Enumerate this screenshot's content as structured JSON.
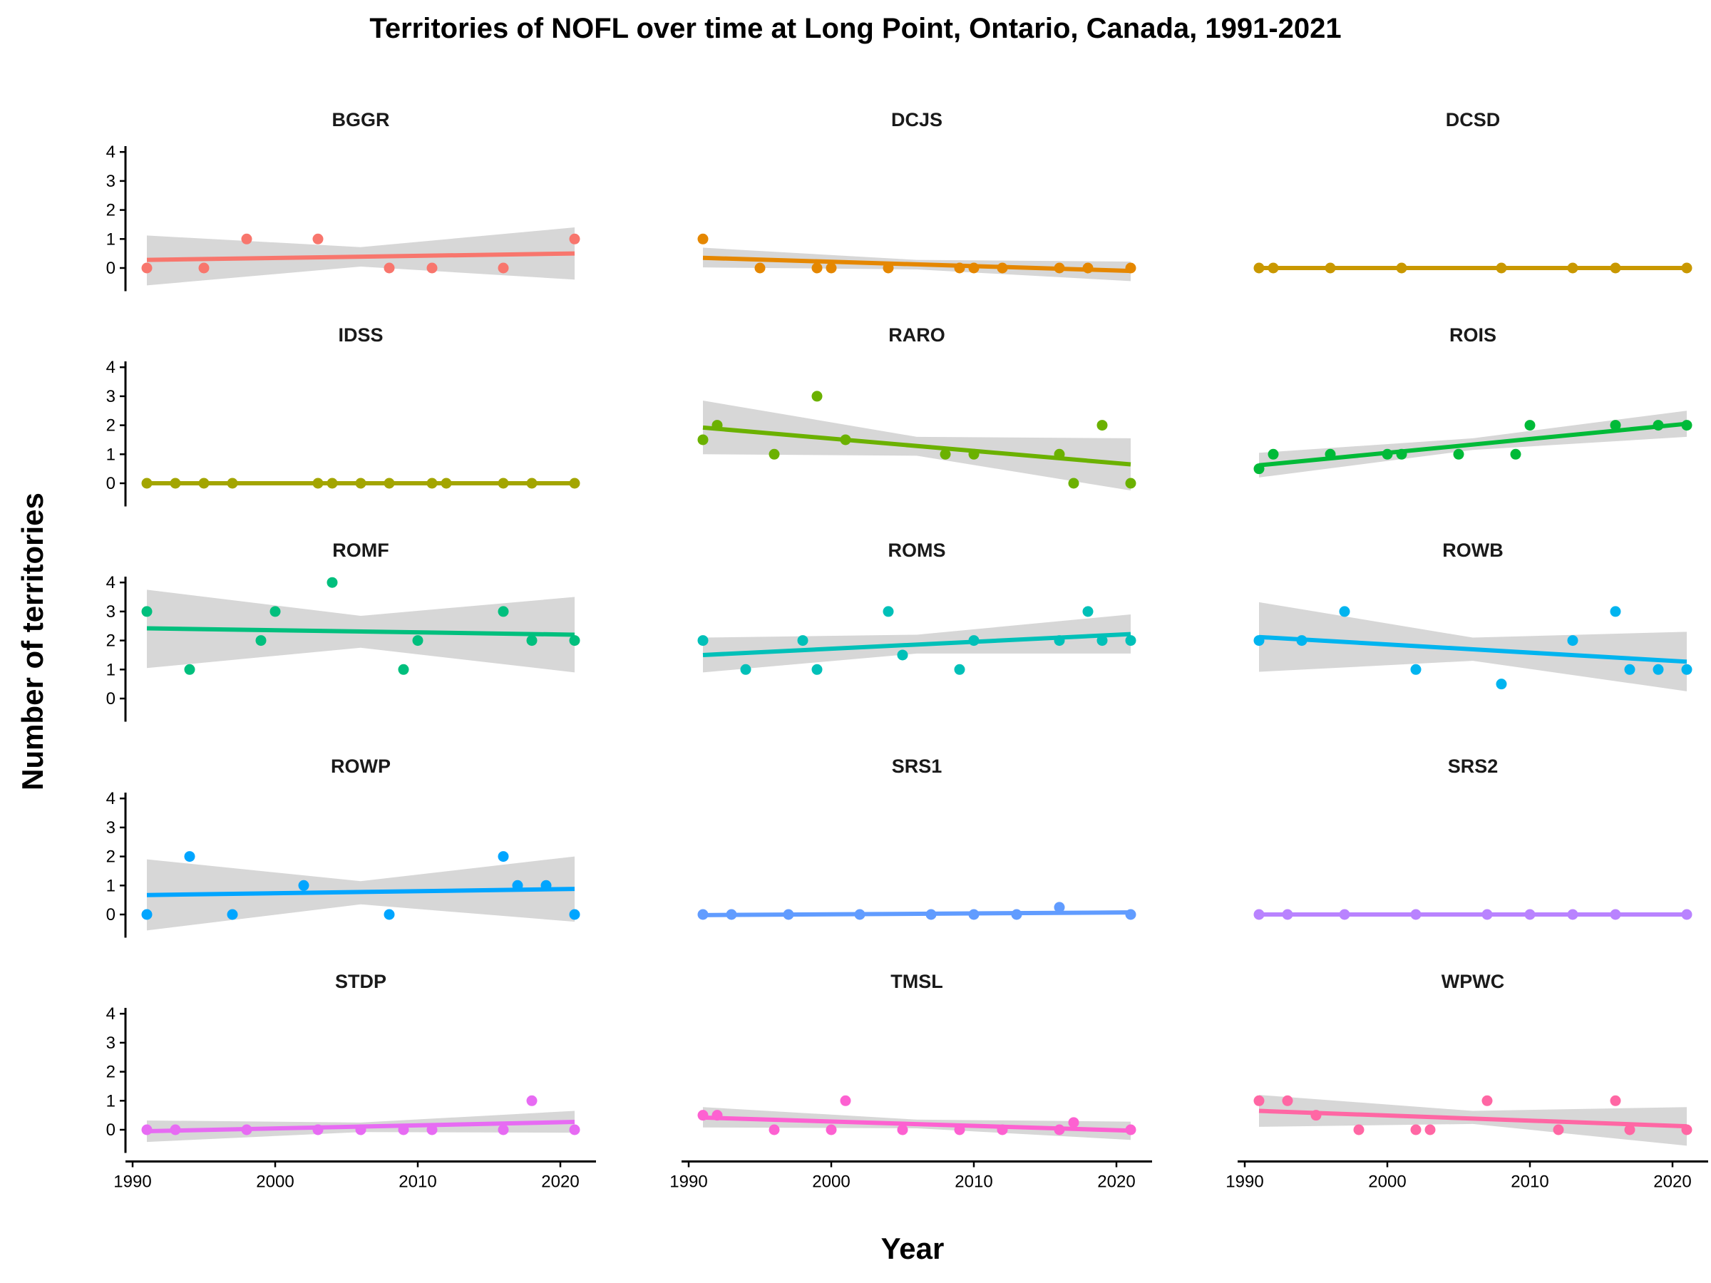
{
  "chart_data": {
    "type": "scatter",
    "title": "Territories of NOFL over time at Long Point, Ontario, Canada, 1991-2021",
    "xlabel": "Year",
    "ylabel": "Number of territories",
    "xlim": [
      1990,
      2022
    ],
    "ylim": [
      -0.8,
      4.2
    ],
    "x_ticks": [
      1990,
      2000,
      2010,
      2020
    ],
    "y_ticks": [
      0,
      1,
      2,
      3,
      4
    ],
    "layout": "facet grid, 5 rows x 3 columns, scatter with linear trend and grey confidence band",
    "panels": [
      {
        "name": "BGGR",
        "color": "#F8766D",
        "points": [
          [
            1991,
            0
          ],
          [
            1995,
            0
          ],
          [
            1998,
            1
          ],
          [
            2003,
            1
          ],
          [
            2008,
            0
          ],
          [
            2011,
            0
          ],
          [
            2016,
            0
          ],
          [
            2021,
            1
          ]
        ],
        "fit": [
          [
            1991,
            0.28
          ],
          [
            2021,
            0.5
          ]
        ],
        "band": [
          [
            1991,
            -0.6,
            1.12
          ],
          [
            2006,
            0.05,
            0.72
          ],
          [
            2021,
            -0.4,
            1.4
          ]
        ]
      },
      {
        "name": "DCJS",
        "color": "#E58700",
        "points": [
          [
            1991,
            1
          ],
          [
            1995,
            0
          ],
          [
            1999,
            0
          ],
          [
            2000,
            0
          ],
          [
            2004,
            0
          ],
          [
            2009,
            0
          ],
          [
            2010,
            0
          ],
          [
            2012,
            0
          ],
          [
            2016,
            0
          ],
          [
            2018,
            0
          ],
          [
            2021,
            0
          ]
        ],
        "fit": [
          [
            1991,
            0.35
          ],
          [
            2021,
            -0.1
          ]
        ],
        "band": [
          [
            1991,
            0.02,
            0.7
          ],
          [
            2006,
            -0.05,
            0.28
          ],
          [
            2021,
            -0.45,
            0.22
          ]
        ]
      },
      {
        "name": "DCSD",
        "color": "#C99800",
        "points": [
          [
            1991,
            0
          ],
          [
            1992,
            0
          ],
          [
            1996,
            0
          ],
          [
            2001,
            0
          ],
          [
            2008,
            0
          ],
          [
            2013,
            0
          ],
          [
            2016,
            0
          ],
          [
            2021,
            0
          ]
        ],
        "fit": [
          [
            1991,
            0
          ],
          [
            2021,
            0
          ]
        ],
        "band": [
          [
            1991,
            0,
            0
          ],
          [
            2006,
            0,
            0
          ],
          [
            2021,
            0,
            0
          ]
        ]
      },
      {
        "name": "IDSS",
        "color": "#A3A500",
        "points": [
          [
            1991,
            0
          ],
          [
            1993,
            0
          ],
          [
            1995,
            0
          ],
          [
            1997,
            0
          ],
          [
            2003,
            0
          ],
          [
            2004,
            0
          ],
          [
            2006,
            0
          ],
          [
            2008,
            0
          ],
          [
            2011,
            0
          ],
          [
            2012,
            0
          ],
          [
            2016,
            0
          ],
          [
            2018,
            0
          ],
          [
            2021,
            0
          ]
        ],
        "fit": [
          [
            1991,
            0
          ],
          [
            2021,
            0
          ]
        ],
        "band": [
          [
            1991,
            0,
            0
          ],
          [
            2006,
            0,
            0
          ],
          [
            2021,
            0,
            0
          ]
        ]
      },
      {
        "name": "RARO",
        "color": "#6BB100",
        "points": [
          [
            1991,
            1.5
          ],
          [
            1992,
            2
          ],
          [
            1996,
            1
          ],
          [
            1999,
            3
          ],
          [
            2001,
            1.5
          ],
          [
            2008,
            1
          ],
          [
            2010,
            1
          ],
          [
            2016,
            1
          ],
          [
            2017,
            0
          ],
          [
            2019,
            2
          ],
          [
            2021,
            0
          ]
        ],
        "fit": [
          [
            1991,
            1.92
          ],
          [
            2021,
            0.65
          ]
        ],
        "band": [
          [
            1991,
            1.0,
            2.85
          ],
          [
            2006,
            0.95,
            1.6
          ],
          [
            2021,
            -0.25,
            1.55
          ]
        ]
      },
      {
        "name": "ROIS",
        "color": "#00BA38",
        "points": [
          [
            1991,
            0.5
          ],
          [
            1992,
            1
          ],
          [
            1996,
            1
          ],
          [
            2000,
            1
          ],
          [
            2001,
            1
          ],
          [
            2005,
            1
          ],
          [
            2009,
            1
          ],
          [
            2010,
            2
          ],
          [
            2016,
            2
          ],
          [
            2019,
            2
          ],
          [
            2021,
            2
          ]
        ],
        "fit": [
          [
            1991,
            0.62
          ],
          [
            2021,
            2.05
          ]
        ],
        "band": [
          [
            1991,
            0.2,
            1.05
          ],
          [
            2006,
            1.15,
            1.55
          ],
          [
            2021,
            1.6,
            2.5
          ]
        ]
      },
      {
        "name": "ROMF",
        "color": "#00BF7D",
        "points": [
          [
            1991,
            3
          ],
          [
            1994,
            1
          ],
          [
            1999,
            2
          ],
          [
            2000,
            3
          ],
          [
            2004,
            4
          ],
          [
            2009,
            1
          ],
          [
            2010,
            2
          ],
          [
            2016,
            3
          ],
          [
            2018,
            2
          ],
          [
            2021,
            2
          ]
        ],
        "fit": [
          [
            1991,
            2.42
          ],
          [
            2021,
            2.2
          ]
        ],
        "band": [
          [
            1991,
            1.05,
            3.75
          ],
          [
            2006,
            1.75,
            2.85
          ],
          [
            2021,
            0.9,
            3.5
          ]
        ]
      },
      {
        "name": "ROMS",
        "color": "#00C0B8",
        "points": [
          [
            1991,
            2
          ],
          [
            1994,
            1
          ],
          [
            1998,
            2
          ],
          [
            1999,
            1
          ],
          [
            2004,
            3
          ],
          [
            2005,
            1.5
          ],
          [
            2009,
            1
          ],
          [
            2010,
            2
          ],
          [
            2016,
            2
          ],
          [
            2018,
            3
          ],
          [
            2019,
            2
          ],
          [
            2021,
            2
          ]
        ],
        "fit": [
          [
            1991,
            1.5
          ],
          [
            2021,
            2.22
          ]
        ],
        "band": [
          [
            1991,
            0.9,
            2.1
          ],
          [
            2006,
            1.55,
            2.2
          ],
          [
            2021,
            1.55,
            2.9
          ]
        ]
      },
      {
        "name": "ROWB",
        "color": "#00B4EF",
        "points": [
          [
            1991,
            2
          ],
          [
            1994,
            2
          ],
          [
            1997,
            3
          ],
          [
            2002,
            1
          ],
          [
            2008,
            0.5
          ],
          [
            2013,
            2
          ],
          [
            2016,
            3
          ],
          [
            2017,
            1
          ],
          [
            2019,
            1
          ],
          [
            2021,
            1
          ]
        ],
        "fit": [
          [
            1991,
            2.12
          ],
          [
            2021,
            1.27
          ]
        ],
        "band": [
          [
            1991,
            0.92,
            3.32
          ],
          [
            2006,
            1.3,
            2.1
          ],
          [
            2021,
            0.25,
            2.3
          ]
        ]
      },
      {
        "name": "ROWP",
        "color": "#00A5FF",
        "points": [
          [
            1991,
            0
          ],
          [
            1994,
            2
          ],
          [
            1997,
            0
          ],
          [
            2002,
            1
          ],
          [
            2008,
            0
          ],
          [
            2016,
            2
          ],
          [
            2017,
            1
          ],
          [
            2019,
            1
          ],
          [
            2021,
            0
          ]
        ],
        "fit": [
          [
            1991,
            0.67
          ],
          [
            2021,
            0.88
          ]
        ],
        "band": [
          [
            1991,
            -0.55,
            1.9
          ],
          [
            2006,
            0.35,
            1.15
          ],
          [
            2021,
            -0.25,
            2.0
          ]
        ]
      },
      {
        "name": "SRS1",
        "color": "#619CFF",
        "points": [
          [
            1991,
            0
          ],
          [
            1993,
            0
          ],
          [
            1997,
            0
          ],
          [
            2002,
            0
          ],
          [
            2007,
            0
          ],
          [
            2010,
            0
          ],
          [
            2013,
            0
          ],
          [
            2016,
            0.25
          ],
          [
            2021,
            0
          ]
        ],
        "fit": [
          [
            1991,
            -0.02
          ],
          [
            2021,
            0.07
          ]
        ],
        "band": [
          [
            1991,
            -0.08,
            0.05
          ],
          [
            2006,
            0.0,
            0.05
          ],
          [
            2021,
            0.0,
            0.15
          ]
        ]
      },
      {
        "name": "SRS2",
        "color": "#B983FF",
        "points": [
          [
            1991,
            0
          ],
          [
            1993,
            0
          ],
          [
            1997,
            0
          ],
          [
            2002,
            0
          ],
          [
            2007,
            0
          ],
          [
            2010,
            0
          ],
          [
            2013,
            0
          ],
          [
            2016,
            0
          ],
          [
            2021,
            0
          ]
        ],
        "fit": [
          [
            1991,
            0
          ],
          [
            2021,
            0
          ]
        ],
        "band": [
          [
            1991,
            0,
            0
          ],
          [
            2006,
            0,
            0
          ],
          [
            2021,
            0,
            0
          ]
        ]
      },
      {
        "name": "STDP",
        "color": "#E76BF3",
        "points": [
          [
            1991,
            0
          ],
          [
            1993,
            0
          ],
          [
            1998,
            0
          ],
          [
            2003,
            0
          ],
          [
            2006,
            0
          ],
          [
            2009,
            0
          ],
          [
            2011,
            0
          ],
          [
            2016,
            0
          ],
          [
            2018,
            1
          ],
          [
            2021,
            0
          ]
        ],
        "fit": [
          [
            1991,
            -0.05
          ],
          [
            2021,
            0.27
          ]
        ],
        "band": [
          [
            1991,
            -0.42,
            0.32
          ],
          [
            2006,
            -0.08,
            0.25
          ],
          [
            2021,
            -0.1,
            0.65
          ]
        ]
      },
      {
        "name": "TMSL",
        "color": "#FD61D1",
        "points": [
          [
            1991,
            0.5
          ],
          [
            1992,
            0.5
          ],
          [
            1996,
            0
          ],
          [
            2000,
            0
          ],
          [
            2001,
            1
          ],
          [
            2005,
            0
          ],
          [
            2009,
            0
          ],
          [
            2012,
            0
          ],
          [
            2016,
            0
          ],
          [
            2017,
            0.25
          ],
          [
            2021,
            0
          ]
        ],
        "fit": [
          [
            1991,
            0.42
          ],
          [
            2021,
            -0.03
          ]
        ],
        "band": [
          [
            1991,
            0.08,
            0.78
          ],
          [
            2006,
            0.05,
            0.35
          ],
          [
            2021,
            -0.35,
            0.28
          ]
        ]
      },
      {
        "name": "WPWC",
        "color": "#FF67A4",
        "points": [
          [
            1991,
            1
          ],
          [
            1993,
            1
          ],
          [
            1995,
            0.5
          ],
          [
            1998,
            0
          ],
          [
            2002,
            0
          ],
          [
            2003,
            0
          ],
          [
            2007,
            1
          ],
          [
            2012,
            0
          ],
          [
            2016,
            1
          ],
          [
            2017,
            0
          ],
          [
            2021,
            0
          ]
        ],
        "fit": [
          [
            1991,
            0.65
          ],
          [
            2021,
            0.12
          ]
        ],
        "band": [
          [
            1991,
            0.1,
            1.2
          ],
          [
            2006,
            0.2,
            0.65
          ],
          [
            2021,
            -0.55,
            0.78
          ]
        ]
      }
    ]
  }
}
